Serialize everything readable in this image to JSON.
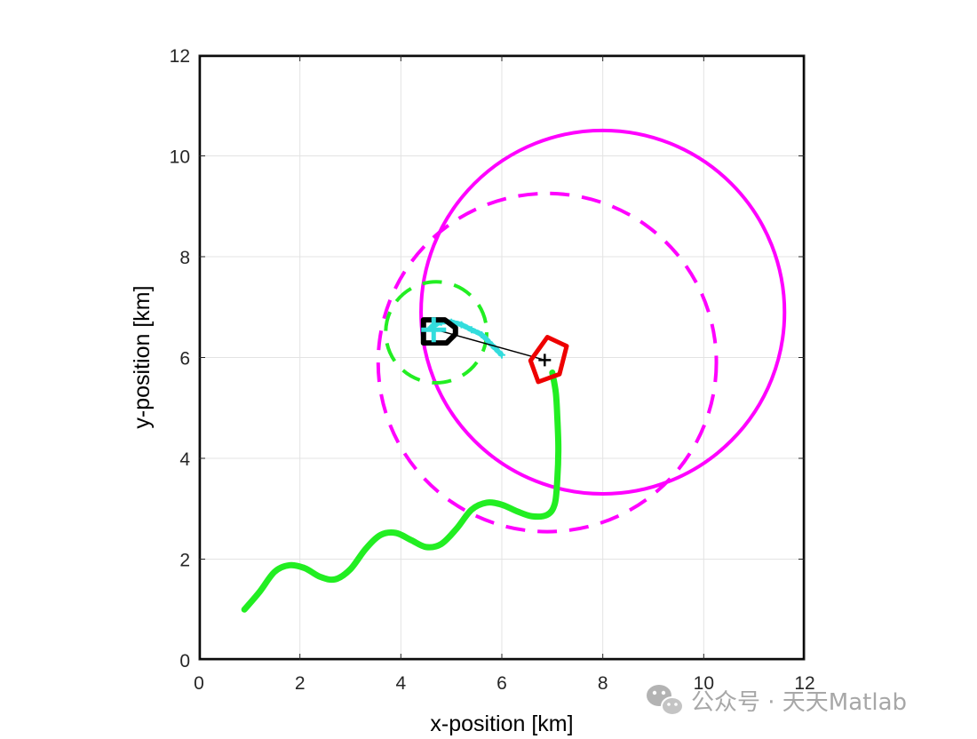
{
  "chart_data": {
    "type": "line",
    "title": "",
    "xlabel": "x-position [km]",
    "ylabel": "y-position [km]",
    "xlim": [
      0,
      12
    ],
    "ylim": [
      0,
      12
    ],
    "xticks": [
      "0",
      "2",
      "4",
      "6",
      "8",
      "10",
      "12"
    ],
    "yticks": [
      "0",
      "2",
      "4",
      "6",
      "8",
      "10",
      "12"
    ],
    "grid": true,
    "boundary": {
      "x": [
        0,
        12
      ],
      "y": [
        0,
        12
      ],
      "color": "#000000"
    },
    "series": [
      {
        "name": "green-trajectory",
        "color": "#22ee22",
        "style": "solid",
        "x": [
          0.9,
          1.2,
          1.5,
          1.8,
          2.1,
          2.4,
          2.7,
          3.0,
          3.3,
          3.6,
          3.9,
          4.2,
          4.5,
          4.8,
          5.1,
          5.4,
          5.7,
          6.0,
          6.3,
          6.6,
          6.9,
          7.05,
          7.1,
          7.12,
          7.1,
          7.07,
          7.0
        ],
        "y": [
          1.0,
          1.35,
          1.75,
          1.88,
          1.82,
          1.65,
          1.6,
          1.8,
          2.2,
          2.48,
          2.52,
          2.38,
          2.24,
          2.3,
          2.6,
          2.98,
          3.12,
          3.08,
          2.95,
          2.85,
          2.88,
          3.1,
          3.6,
          4.2,
          4.8,
          5.3,
          5.7
        ]
      },
      {
        "name": "cyan-track",
        "color": "#33dddd",
        "style": "dotted",
        "x": [
          4.6,
          4.8,
          5.0,
          5.2,
          5.4,
          5.6,
          5.8,
          6.0
        ],
        "y": [
          6.6,
          6.7,
          6.7,
          6.65,
          6.55,
          6.45,
          6.25,
          6.05
        ]
      },
      {
        "name": "link-line",
        "color": "#000000",
        "style": "solid",
        "x": [
          4.7,
          6.85
        ],
        "y": [
          6.55,
          5.95
        ]
      }
    ],
    "circles": [
      {
        "name": "magenta-solid-circle",
        "center": [
          8.0,
          6.9
        ],
        "radius": 3.6,
        "color": "#ff00ff",
        "style": "solid"
      },
      {
        "name": "magenta-dashed-circle",
        "center": [
          6.9,
          5.9
        ],
        "radius": 3.35,
        "color": "#ff00ff",
        "style": "dashed"
      },
      {
        "name": "green-dashed-circle",
        "center": [
          4.7,
          6.5
        ],
        "radius": 1.0,
        "color": "#22ee22",
        "style": "dashed"
      }
    ],
    "markers": [
      {
        "name": "red-arrow-marker",
        "x": 6.9,
        "y": 5.9,
        "color": "#ee0000",
        "heading_deg": -115
      },
      {
        "name": "black-boat-marker",
        "x": 4.8,
        "y": 6.5,
        "color": "#000000"
      },
      {
        "name": "cyan-plus-marker",
        "x": 4.65,
        "y": 6.55,
        "color": "#33dddd"
      },
      {
        "name": "black-plus-marker",
        "x": 6.85,
        "y": 5.95,
        "color": "#000000"
      }
    ]
  },
  "watermark": {
    "text": "公众号 · 天天Matlab",
    "icon": "wechat-icon"
  }
}
